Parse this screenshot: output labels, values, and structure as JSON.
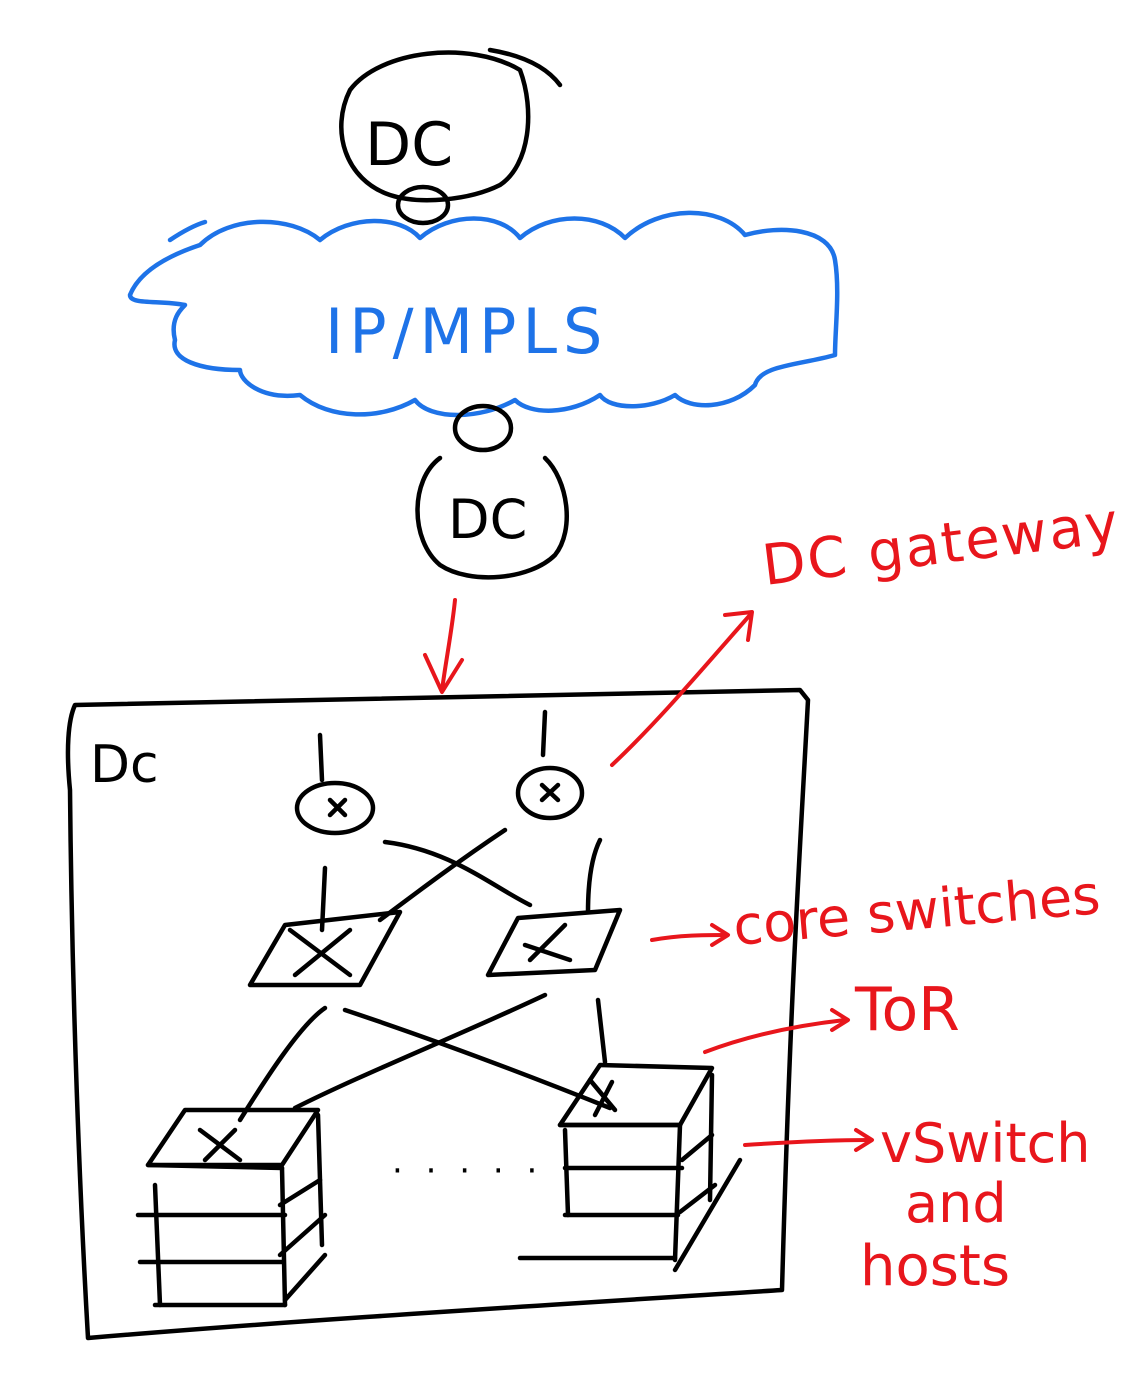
{
  "labels": {
    "top_dc": "DC",
    "cloud": "IP/MPLS",
    "mid_dc": "DC",
    "box_dc": "Dc",
    "gateway": "DC gateway",
    "core": "core switches",
    "tor": "ToR",
    "vswitch_line1": "vSwitch",
    "vswitch_line2": "and",
    "vswitch_line3": "hosts",
    "ellipsis": "· · · · ·"
  },
  "colors": {
    "ink": "#000000",
    "cloud": "#1e73e8",
    "annotation": "#e8161c"
  }
}
